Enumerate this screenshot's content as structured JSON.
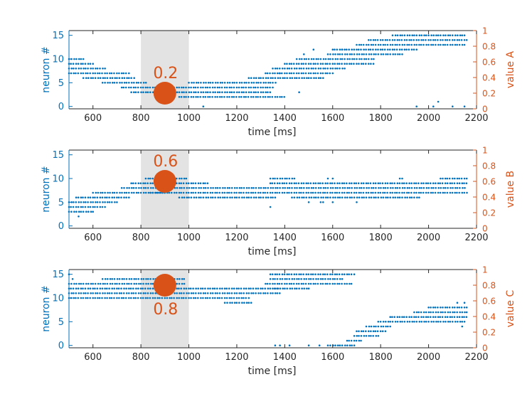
{
  "colors": {
    "spikes": "#0072BD",
    "value": "#D95319",
    "highlight": "#e3e3e3",
    "axis": "#262626"
  },
  "chart_data": [
    {
      "type": "scatter",
      "xlabel": "time [ms]",
      "ylabel": "neuron #",
      "y2label": "value A",
      "xlim": [
        500,
        2200
      ],
      "ylim": [
        -0.5,
        16
      ],
      "y2lim": [
        0,
        1
      ],
      "xticks": [
        600,
        800,
        1000,
        1200,
        1400,
        1600,
        1800,
        2000,
        2200
      ],
      "yticks": [
        0,
        5,
        10,
        15
      ],
      "y2ticks": [
        0,
        0.2,
        0.4,
        0.6,
        0.8,
        1
      ],
      "highlight_window": [
        800,
        1000
      ],
      "marker": {
        "x": 900,
        "value": 0.2,
        "label": "0.2"
      },
      "spike_bands": [
        {
          "neuron": 10,
          "x": [
            500,
            570
          ]
        },
        {
          "neuron": 9,
          "x": [
            500,
            600
          ]
        },
        {
          "neuron": 8,
          "x": [
            500,
            650
          ]
        },
        {
          "neuron": 7,
          "x": [
            500,
            750
          ]
        },
        {
          "neuron": 6,
          "x": [
            560,
            775
          ]
        },
        {
          "neuron": 5,
          "x": [
            640,
            825
          ]
        },
        {
          "neuron": 4,
          "x": [
            720,
            1350
          ]
        },
        {
          "neuron": 3,
          "x": [
            760,
            1340
          ]
        },
        {
          "neuron": 2,
          "x": [
            960,
            1400
          ]
        },
        {
          "neuron": 5,
          "x": [
            1000,
            1370
          ]
        },
        {
          "neuron": 6,
          "x": [
            1250,
            1570
          ]
        },
        {
          "neuron": 7,
          "x": [
            1320,
            1600
          ]
        },
        {
          "neuron": 8,
          "x": [
            1350,
            1650
          ]
        },
        {
          "neuron": 9,
          "x": [
            1400,
            1770
          ]
        },
        {
          "neuron": 10,
          "x": [
            1450,
            1780
          ]
        },
        {
          "neuron": 11,
          "x": [
            1580,
            1900
          ]
        },
        {
          "neuron": 12,
          "x": [
            1600,
            1950
          ]
        },
        {
          "neuron": 13,
          "x": [
            1700,
            2160
          ]
        },
        {
          "neuron": 14,
          "x": [
            1750,
            2160
          ]
        },
        {
          "neuron": 15,
          "x": [
            1850,
            2160
          ]
        }
      ],
      "spikes": [
        [
          1950,
          0
        ],
        [
          2040,
          1
        ],
        [
          2020,
          0
        ],
        [
          2150,
          0
        ],
        [
          2100,
          0
        ],
        [
          1480,
          11
        ],
        [
          1520,
          12
        ],
        [
          1640,
          12
        ],
        [
          1380,
          7
        ],
        [
          1460,
          3
        ],
        [
          1060,
          0
        ]
      ]
    },
    {
      "type": "scatter",
      "xlabel": "time [ms]",
      "ylabel": "neuron #",
      "y2label": "value B",
      "xlim": [
        500,
        2200
      ],
      "ylim": [
        -0.5,
        16
      ],
      "y2lim": [
        0,
        1
      ],
      "xticks": [
        600,
        800,
        1000,
        1200,
        1400,
        1600,
        1800,
        2000,
        2200
      ],
      "yticks": [
        0,
        5,
        10,
        15
      ],
      "y2ticks": [
        0,
        0.2,
        0.4,
        0.6,
        0.8,
        1
      ],
      "highlight_window": [
        800,
        1000
      ],
      "marker": {
        "x": 900,
        "value": 0.6,
        "label": "0.6"
      },
      "spike_bands": [
        {
          "neuron": 3,
          "x": [
            500,
            600
          ]
        },
        {
          "neuron": 4,
          "x": [
            500,
            650
          ]
        },
        {
          "neuron": 5,
          "x": [
            500,
            700
          ]
        },
        {
          "neuron": 6,
          "x": [
            530,
            750
          ]
        },
        {
          "neuron": 7,
          "x": [
            600,
            900
          ]
        },
        {
          "neuron": 8,
          "x": [
            720,
            2160
          ]
        },
        {
          "neuron": 9,
          "x": [
            760,
            1080
          ]
        },
        {
          "neuron": 10,
          "x": [
            820,
            990
          ]
        },
        {
          "neuron": 7,
          "x": [
            840,
            2160
          ]
        },
        {
          "neuron": 6,
          "x": [
            960,
            1370
          ]
        },
        {
          "neuron": 6,
          "x": [
            1430,
            1970
          ]
        },
        {
          "neuron": 9,
          "x": [
            1340,
            2160
          ]
        },
        {
          "neuron": 10,
          "x": [
            1340,
            1450
          ]
        },
        {
          "neuron": 10,
          "x": [
            2050,
            2160
          ]
        }
      ],
      "spikes": [
        [
          540,
          2
        ],
        [
          1340,
          4
        ],
        [
          1500,
          5
        ],
        [
          1550,
          5
        ],
        [
          1560,
          5
        ],
        [
          1600,
          5
        ],
        [
          1700,
          5
        ],
        [
          1580,
          10
        ],
        [
          1600,
          10
        ],
        [
          1880,
          10
        ],
        [
          1890,
          10
        ]
      ]
    },
    {
      "type": "scatter",
      "xlabel": "time [ms]",
      "ylabel": "neuron #",
      "y2label": "value C",
      "xlim": [
        500,
        2200
      ],
      "ylim": [
        -0.5,
        16
      ],
      "y2lim": [
        0,
        1
      ],
      "xticks": [
        600,
        800,
        1000,
        1200,
        1400,
        1600,
        1800,
        2000,
        2200
      ],
      "yticks": [
        0,
        5,
        10,
        15
      ],
      "y2ticks": [
        0,
        0.2,
        0.4,
        0.6,
        0.8,
        1
      ],
      "highlight_window": [
        800,
        1000
      ],
      "marker": {
        "x": 900,
        "value": 0.8,
        "label": "0.8"
      },
      "spike_bands": [
        {
          "neuron": 13,
          "x": [
            500,
            990
          ]
        },
        {
          "neuron": 12,
          "x": [
            500,
            1370
          ]
        },
        {
          "neuron": 11,
          "x": [
            500,
            1380
          ]
        },
        {
          "neuron": 10,
          "x": [
            500,
            1250
          ]
        },
        {
          "neuron": 14,
          "x": [
            640,
            980
          ]
        },
        {
          "neuron": 9,
          "x": [
            1150,
            1270
          ]
        },
        {
          "neuron": 13,
          "x": [
            1320,
            1680
          ]
        },
        {
          "neuron": 14,
          "x": [
            1340,
            1650
          ]
        },
        {
          "neuron": 15,
          "x": [
            1340,
            1690
          ]
        },
        {
          "neuron": 12,
          "x": [
            1360,
            1500
          ]
        },
        {
          "neuron": 0,
          "x": [
            1580,
            1690
          ]
        },
        {
          "neuron": 1,
          "x": [
            1660,
            1720
          ]
        },
        {
          "neuron": 2,
          "x": [
            1690,
            1790
          ]
        },
        {
          "neuron": 3,
          "x": [
            1700,
            1820
          ]
        },
        {
          "neuron": 4,
          "x": [
            1740,
            1850
          ]
        },
        {
          "neuron": 5,
          "x": [
            1790,
            2160
          ]
        },
        {
          "neuron": 6,
          "x": [
            1840,
            2160
          ]
        },
        {
          "neuron": 7,
          "x": [
            1940,
            2160
          ]
        },
        {
          "neuron": 8,
          "x": [
            2000,
            2160
          ]
        }
      ],
      "spikes": [
        [
          500,
          15
        ],
        [
          515,
          14
        ],
        [
          1360,
          0
        ],
        [
          1380,
          0
        ],
        [
          1500,
          0
        ],
        [
          1545,
          0
        ],
        [
          1420,
          0
        ],
        [
          2120,
          9
        ],
        [
          2150,
          9
        ],
        [
          2140,
          4
        ]
      ]
    }
  ]
}
